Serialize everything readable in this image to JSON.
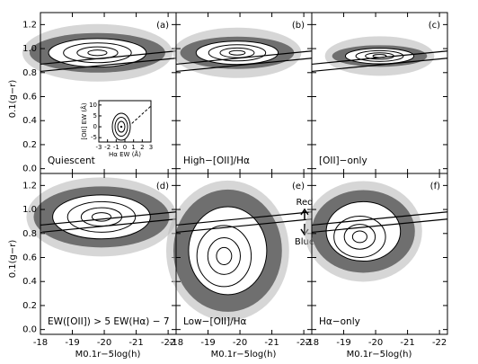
{
  "chart_data": {
    "type": "line",
    "y_label": "0.1(g−r)",
    "x_label": "M0.1r−5log(h)",
    "xlim": [
      -18,
      -22.25
    ],
    "ylim": [
      -0.04,
      1.3
    ],
    "xticks": [
      -18,
      -19,
      -20,
      -21,
      -22
    ],
    "yticks": [
      {
        "value": 0,
        "label": "0.0"
      },
      0.2,
      0.4,
      0.6,
      0.8,
      {
        "value": 1,
        "label": "1.0"
      },
      1.2
    ],
    "x": [
      -18,
      -22.25
    ],
    "series": [
      {
        "color": "#000000",
        "values": [
          0.87,
          0.98
        ]
      },
      {
        "color": "#000000",
        "values": [
          0.81,
          0.92
        ]
      }
    ],
    "panels": [
      {
        "label": "(a)",
        "annotation": "Quiescent"
      },
      {
        "label": "(b)",
        "annotation": "High−[OII]/Hα"
      },
      {
        "label": "(c)",
        "annotation": "[OII]−only"
      },
      {
        "label": "(d)",
        "annotation": "EW([OII]) > 5 EW(Hα) − 7"
      },
      {
        "label": "(e)",
        "annotation": "Low−[OII]/Hα"
      },
      {
        "label": "(f)",
        "annotation": "Hα−only"
      }
    ],
    "red_label": "Red",
    "blue_label": "Blue",
    "inset": {
      "x_label": "Hα EW (Å)",
      "y_label": "[OII] EW (Å)",
      "xlim": [
        -3,
        3
      ],
      "ylim": [
        -7,
        12
      ],
      "xticks": [
        -3,
        -2,
        -1,
        0,
        1,
        2,
        3
      ],
      "yticks": [
        -5,
        0,
        5,
        10
      ]
    }
  }
}
